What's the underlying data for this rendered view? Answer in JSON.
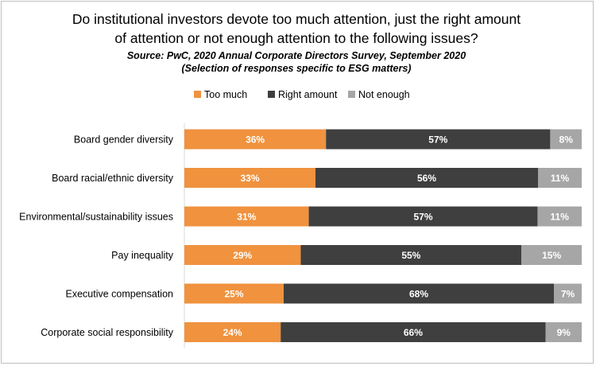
{
  "chart_data": {
    "type": "bar",
    "orientation": "horizontal",
    "stacked": true,
    "title_line1": "Do institutional investors devote too much attention, just the right amount",
    "title_line2": "of attention or not enough attention to the following issues?",
    "subtitle_line1": "Source: PwC, 2020 Annual Corporate Directors Survey, September 2020",
    "subtitle_line2": "(Selection of responses specific to ESG matters)",
    "legend_position": "top",
    "categories": [
      "Board gender diversity",
      "Board racial/ethnic diversity",
      "Environmental/sustainability issues",
      "Pay inequality",
      "Executive compensation",
      "Corporate social responsibility"
    ],
    "series": [
      {
        "name": "Too much",
        "color": "#F0923E",
        "values": [
          36,
          33,
          31,
          29,
          25,
          24
        ],
        "labels": [
          "36%",
          "33%",
          "31%",
          "29%",
          "25%",
          "24%"
        ]
      },
      {
        "name": "Right amount",
        "color": "#3F3F3F",
        "values": [
          57,
          56,
          57,
          55,
          68,
          66
        ],
        "labels": [
          "57%",
          "56%",
          "57%",
          "55%",
          "68%",
          "66%"
        ]
      },
      {
        "name": "Not enough",
        "color": "#A6A6A6",
        "values": [
          8,
          11,
          11,
          15,
          7,
          9
        ],
        "labels": [
          "8%",
          "11%",
          "11%",
          "15%",
          "7%",
          "9%"
        ]
      }
    ]
  }
}
